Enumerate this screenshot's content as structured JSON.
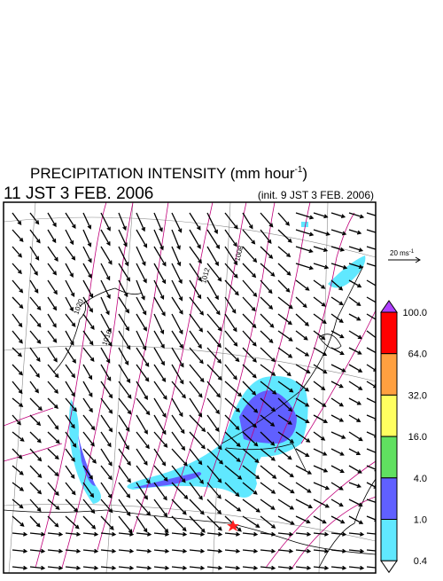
{
  "header": {
    "title": "PRECIPITATION INTENSITY (mm hour",
    "title_unit_exponent": "-1",
    "title_close": ")",
    "valid_time": "11 JST 3 FEB. 2006",
    "init_time": "(init. 9 JST 3 FEB. 2006)"
  },
  "vector_scale": {
    "label": "20 ms",
    "exponent": "-1"
  },
  "colorbar": {
    "labels": [
      "100.0",
      "64.0",
      "32.0",
      "16.0",
      "4.0",
      "1.0",
      "0.4"
    ],
    "colors": [
      "#ff0000",
      "#ffa040",
      "#ffff60",
      "#60e060",
      "#6060ff",
      "#60e8ff"
    ],
    "over_color": "#b040ff",
    "under_color": "#ffffff"
  },
  "contour_labels": [
    "1020",
    "1016",
    "1012",
    "1008"
  ]
}
